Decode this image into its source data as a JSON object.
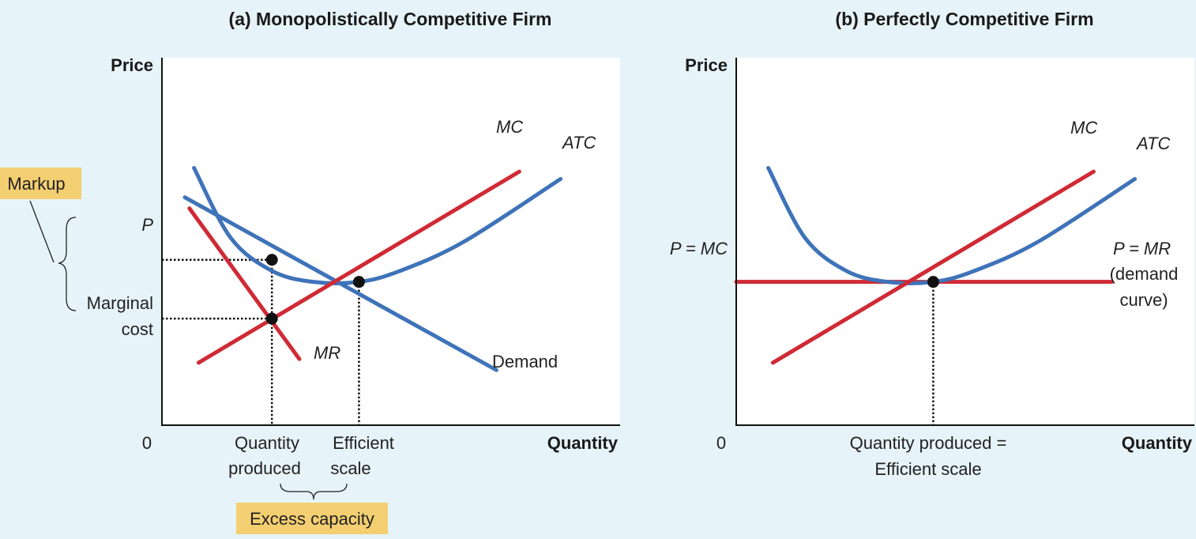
{
  "colors": {
    "background": "#e6f3f8",
    "plot_bg": "#ffffff",
    "blue": "#3f73b9",
    "red": "#d02a35",
    "highlight": "#f4cf72"
  },
  "chart_data": [
    {
      "type": "line",
      "title": "(a) Monopolistically Competitive Firm",
      "ylabel": "Price",
      "xlabel": "Quantity",
      "origin_label": "0",
      "xlim": [
        0,
        10
      ],
      "ylim": [
        0,
        10
      ],
      "series": [
        {
          "name": "MC",
          "color": "red",
          "x": [
            0.8,
            7.8
          ],
          "y": [
            1.7,
            6.9
          ]
        },
        {
          "name": "ATC",
          "color": "blue",
          "points": [
            [
              0.7,
              7.0
            ],
            [
              1.5,
              5.1
            ],
            [
              2.4,
              4.2
            ],
            [
              3.3,
              3.9
            ],
            [
              4.3,
              3.9
            ],
            [
              5.2,
              4.2
            ],
            [
              6.6,
              5.0
            ],
            [
              8.7,
              6.7
            ]
          ]
        },
        {
          "name": "Demand",
          "color": "blue",
          "x": [
            0.5,
            7.3
          ],
          "y": [
            6.2,
            1.5
          ]
        },
        {
          "name": "MR",
          "color": "red",
          "x": [
            0.6,
            3.0
          ],
          "y": [
            5.9,
            1.8
          ]
        }
      ],
      "points": [
        {
          "x": 2.4,
          "y": 4.5
        },
        {
          "x": 4.3,
          "y": 3.9
        },
        {
          "x": 2.4,
          "y": 2.9
        }
      ],
      "y_ticks": [
        {
          "label": "P",
          "italic": true,
          "y": 4.5
        },
        {
          "label": "Marginal cost",
          "lines": [
            "Marginal",
            "cost"
          ],
          "italic": false,
          "y": 2.9
        }
      ],
      "x_ticks": [
        {
          "lines": [
            "Quantity",
            "produced"
          ],
          "x": 2.4
        },
        {
          "lines": [
            "Efficient",
            "scale"
          ],
          "x": 4.3
        }
      ],
      "annotations": {
        "markup": "Markup",
        "excess_capacity": "Excess capacity"
      }
    },
    {
      "type": "line",
      "title": "(b) Perfectly Competitive Firm",
      "ylabel": "Price",
      "xlabel": "Quantity",
      "origin_label": "0",
      "xlim": [
        0,
        10
      ],
      "ylim": [
        0,
        10
      ],
      "series": [
        {
          "name": "MC",
          "color": "red",
          "x": [
            0.8,
            7.8
          ],
          "y": [
            1.7,
            6.9
          ]
        },
        {
          "name": "ATC",
          "color": "blue",
          "points": [
            [
              0.7,
              7.0
            ],
            [
              1.5,
              5.1
            ],
            [
              2.4,
              4.2
            ],
            [
              3.3,
              3.9
            ],
            [
              4.3,
              3.9
            ],
            [
              5.2,
              4.2
            ],
            [
              6.6,
              5.0
            ],
            [
              8.7,
              6.7
            ]
          ]
        },
        {
          "name": "P = MR",
          "color": "red",
          "x": [
            0.0,
            8.2
          ],
          "y": [
            3.9,
            3.9
          ]
        }
      ],
      "points": [
        {
          "x": 4.3,
          "y": 3.9
        }
      ],
      "y_ticks": [
        {
          "label": "P = MC",
          "italic": true,
          "y": 3.9
        }
      ],
      "x_ticks": [
        {
          "lines": [
            "Quantity produced =",
            "Efficient scale"
          ],
          "x": 4.3
        }
      ],
      "annotations": {
        "demand_label_lines": [
          "(demand",
          "curve)"
        ]
      }
    }
  ]
}
